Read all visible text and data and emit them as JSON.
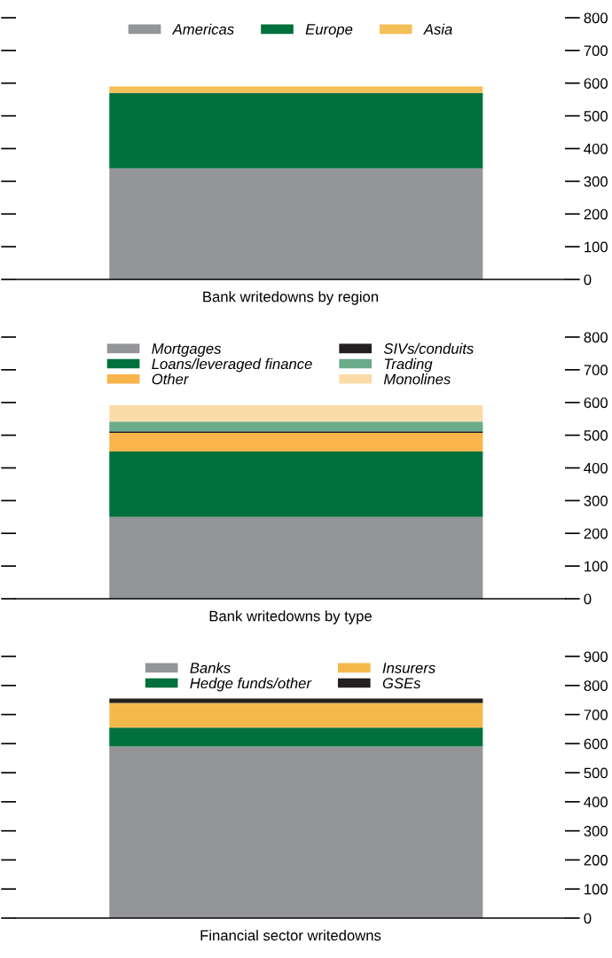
{
  "chart_data": [
    {
      "type": "bar",
      "stacked": true,
      "categories": [
        null
      ],
      "xlabel": "Bank writedowns by region",
      "legend": "top",
      "ylim": [
        0,
        800
      ],
      "yticks": [
        0,
        100,
        200,
        300,
        400,
        500,
        600,
        700,
        800
      ],
      "series": [
        {
          "name": "Americas",
          "color": "#939598",
          "values": [
            340
          ]
        },
        {
          "name": "Europe",
          "color": "#00703c",
          "values": [
            230
          ]
        },
        {
          "name": "Asia",
          "color": "#f5bf57",
          "values": [
            20
          ]
        }
      ]
    },
    {
      "type": "bar",
      "stacked": true,
      "categories": [
        null
      ],
      "xlabel": "Bank writedowns by type",
      "legend": "top",
      "ylim": [
        0,
        800
      ],
      "yticks": [
        0,
        100,
        200,
        300,
        400,
        500,
        600,
        700,
        800
      ],
      "series": [
        {
          "name": "Mortgages",
          "color": "#939598",
          "values": [
            250
          ]
        },
        {
          "name": "Loans/leveraged finance",
          "color": "#00703c",
          "values": [
            200
          ]
        },
        {
          "name": "Other",
          "color": "#f9b44b",
          "values": [
            57
          ]
        },
        {
          "name": "SIVs/conduits",
          "color": "#231f20",
          "values": [
            5
          ]
        },
        {
          "name": "Trading",
          "color": "#6aab8a",
          "values": [
            30
          ]
        },
        {
          "name": "Monolines",
          "color": "#fbdba8",
          "values": [
            50
          ]
        }
      ]
    },
    {
      "type": "bar",
      "stacked": true,
      "categories": [
        null
      ],
      "xlabel": "Financial sector writedowns",
      "legend": "top",
      "ylim": [
        0,
        900
      ],
      "yticks": [
        0,
        100,
        200,
        300,
        400,
        500,
        600,
        700,
        800,
        900
      ],
      "series": [
        {
          "name": "Banks",
          "color": "#939598",
          "values": [
            590
          ]
        },
        {
          "name": "Hedge funds/other",
          "color": "#00703c",
          "values": [
            65
          ]
        },
        {
          "name": "Insurers",
          "color": "#f5b94b",
          "values": [
            85
          ]
        },
        {
          "name": "GSEs",
          "color": "#231f20",
          "values": [
            15
          ]
        }
      ]
    }
  ]
}
